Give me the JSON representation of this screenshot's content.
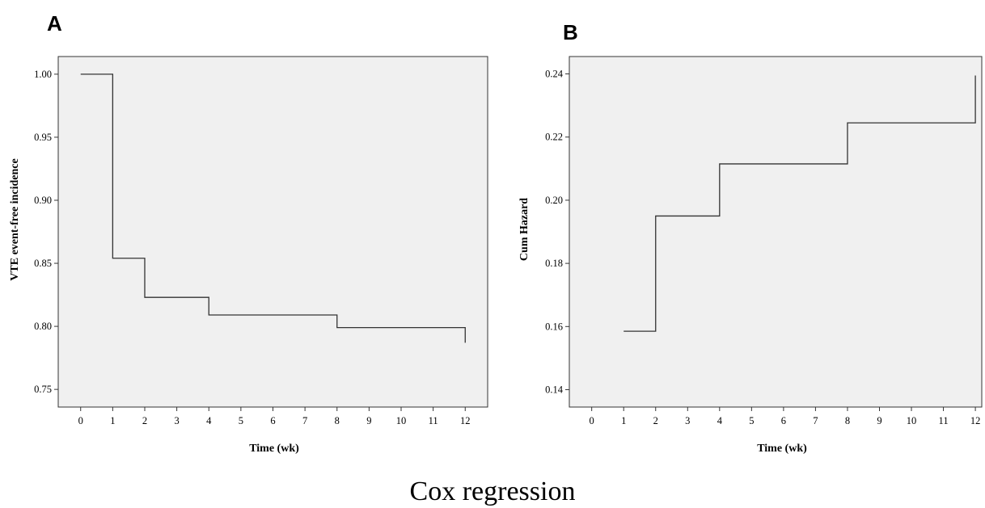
{
  "caption": "Cox regression",
  "chart_data": [
    {
      "panel": "A",
      "type": "line",
      "step": true,
      "xlabel": "Time (wk)",
      "ylabel": "VTE event-free incidence",
      "xticks": [
        0,
        1,
        2,
        3,
        4,
        5,
        6,
        7,
        8,
        9,
        10,
        11,
        12
      ],
      "yticks": [
        "0.75",
        "0.80",
        "0.85",
        "0.90",
        "0.95",
        "1.00"
      ],
      "xlim": [
        -0.7,
        12.7
      ],
      "ylim": [
        0.736,
        1.014
      ],
      "grid": false,
      "series": [
        {
          "x": [
            0,
            1,
            2,
            4,
            8,
            12
          ],
          "y": [
            1.0,
            0.854,
            0.823,
            0.809,
            0.799,
            0.787
          ]
        }
      ]
    },
    {
      "panel": "B",
      "type": "line",
      "step": true,
      "xlabel": "Time (wk)",
      "ylabel": "Cum Hazard",
      "xticks": [
        0,
        1,
        2,
        3,
        4,
        5,
        6,
        7,
        8,
        9,
        10,
        11,
        12
      ],
      "yticks": [
        "0.14",
        "0.16",
        "0.18",
        "0.20",
        "0.22",
        "0.24"
      ],
      "xlim": [
        -0.7,
        12.2
      ],
      "ylim": [
        0.1345,
        0.2455
      ],
      "grid": false,
      "series": [
        {
          "x": [
            1,
            2,
            4,
            8,
            12
          ],
          "y": [
            0.1585,
            0.195,
            0.2115,
            0.2245,
            0.2395
          ]
        }
      ]
    }
  ]
}
